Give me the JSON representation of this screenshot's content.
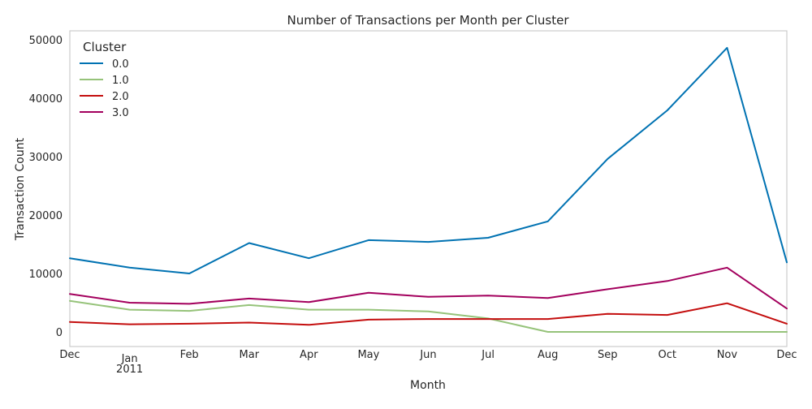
{
  "chart_data": {
    "type": "line",
    "title": "Number of Transactions per Month per Cluster",
    "xlabel": "Month",
    "ylabel": "Transaction Count",
    "x": [
      "2010-12",
      "2011-01",
      "2011-02",
      "2011-03",
      "2011-04",
      "2011-05",
      "2011-06",
      "2011-07",
      "2011-08",
      "2011-09",
      "2011-10",
      "2011-11",
      "2011-12"
    ],
    "x_tick_labels": [
      "Dec",
      "Jan",
      "Feb",
      "Mar",
      "Apr",
      "May",
      "Jun",
      "Jul",
      "Aug",
      "Sep",
      "Oct",
      "Nov",
      "Dec"
    ],
    "x_year_label": "2011",
    "ylim": [
      -2500,
      51500
    ],
    "y_ticks": [
      0,
      10000,
      20000,
      30000,
      40000,
      50000
    ],
    "grid": false,
    "legend": {
      "title": "Cluster",
      "placement": "upper-left"
    },
    "series": [
      {
        "name": "0.0",
        "color": "#0072b2",
        "values": [
          12600,
          11000,
          10000,
          15200,
          12600,
          15700,
          15400,
          16100,
          18900,
          29600,
          37900,
          48600,
          11900
        ]
      },
      {
        "name": "1.0",
        "color": "#96c37a",
        "values": [
          5300,
          3800,
          3600,
          4600,
          3800,
          3800,
          3500,
          2300,
          0,
          0,
          0,
          0,
          0
        ]
      },
      {
        "name": "2.0",
        "color": "#c40e0e",
        "values": [
          1700,
          1300,
          1400,
          1600,
          1200,
          2100,
          2200,
          2200,
          2200,
          3100,
          2900,
          4900,
          1400
        ]
      },
      {
        "name": "3.0",
        "color": "#a3005d",
        "values": [
          6500,
          5000,
          4800,
          5700,
          5100,
          6700,
          6000,
          6200,
          5800,
          7300,
          8700,
          11000,
          4000
        ]
      }
    ]
  }
}
